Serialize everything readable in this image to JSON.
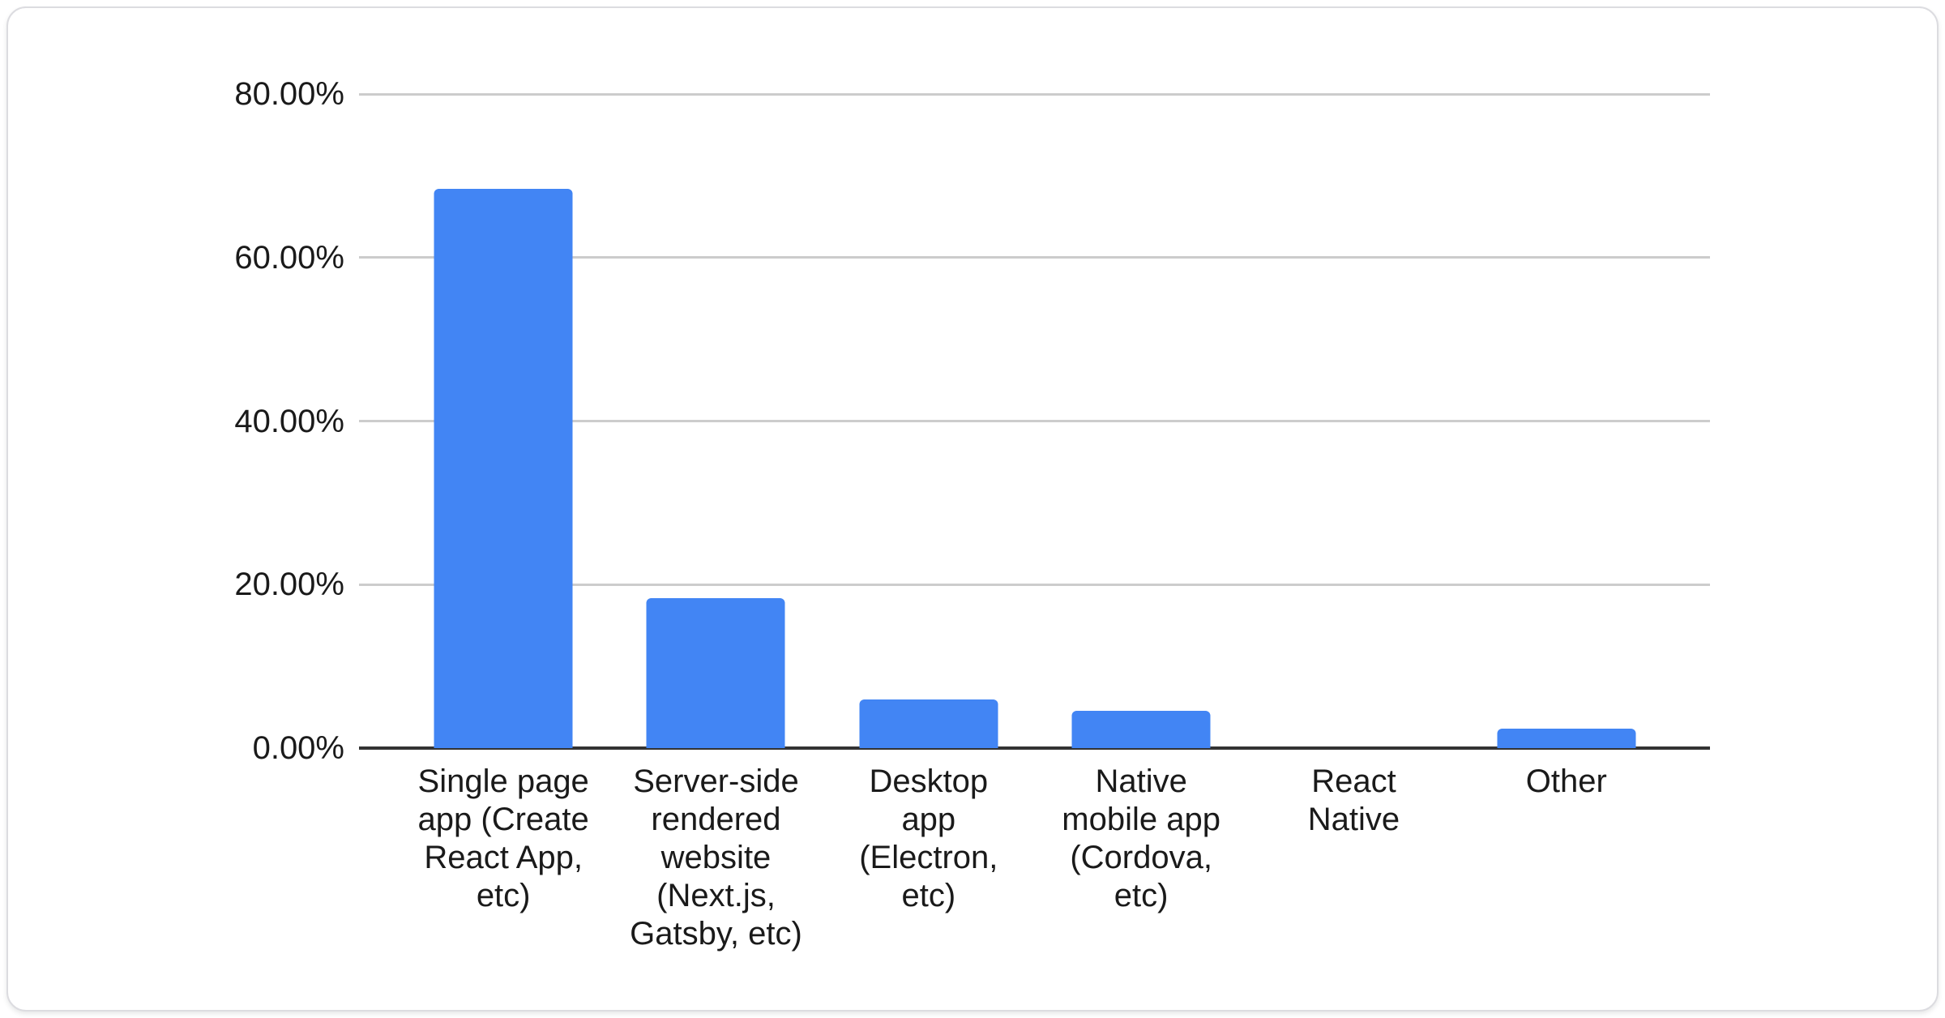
{
  "card": {
    "background": "#ffffff",
    "border_color": "#dcdce0"
  },
  "chart_data": {
    "type": "bar",
    "title": "",
    "xlabel": "",
    "ylabel": "",
    "categories": [
      "Single page app (Create React App, etc)",
      "Server-side rendered website (Next.js, Gatsby, etc)",
      "Desktop app (Electron, etc)",
      "Native mobile app (Cordova, etc)",
      "React Native",
      "Other"
    ],
    "category_display_lines": [
      "Single page\napp (Create\nReact App,\netc)",
      "Server-side\nrendered\nwebsite\n(Next.js,\nGatsby, etc)",
      "Desktop\napp\n(Electron,\netc)",
      "Native\nmobile app\n(Cordova,\netc)",
      "React\nNative",
      "Other"
    ],
    "values": [
      68.4,
      18.3,
      5.9,
      4.6,
      0,
      2.4
    ],
    "unit": "%",
    "ylim": [
      0,
      80
    ],
    "yticks": [
      "0.00%",
      "20.00%",
      "40.00%",
      "60.00%",
      "80.00%"
    ],
    "grid": true,
    "legend": "none",
    "bar_color": "#4285f4",
    "gridline_color": "#cccccc",
    "axis_line_color": "#333333",
    "label_color": "#1a1a1a"
  }
}
